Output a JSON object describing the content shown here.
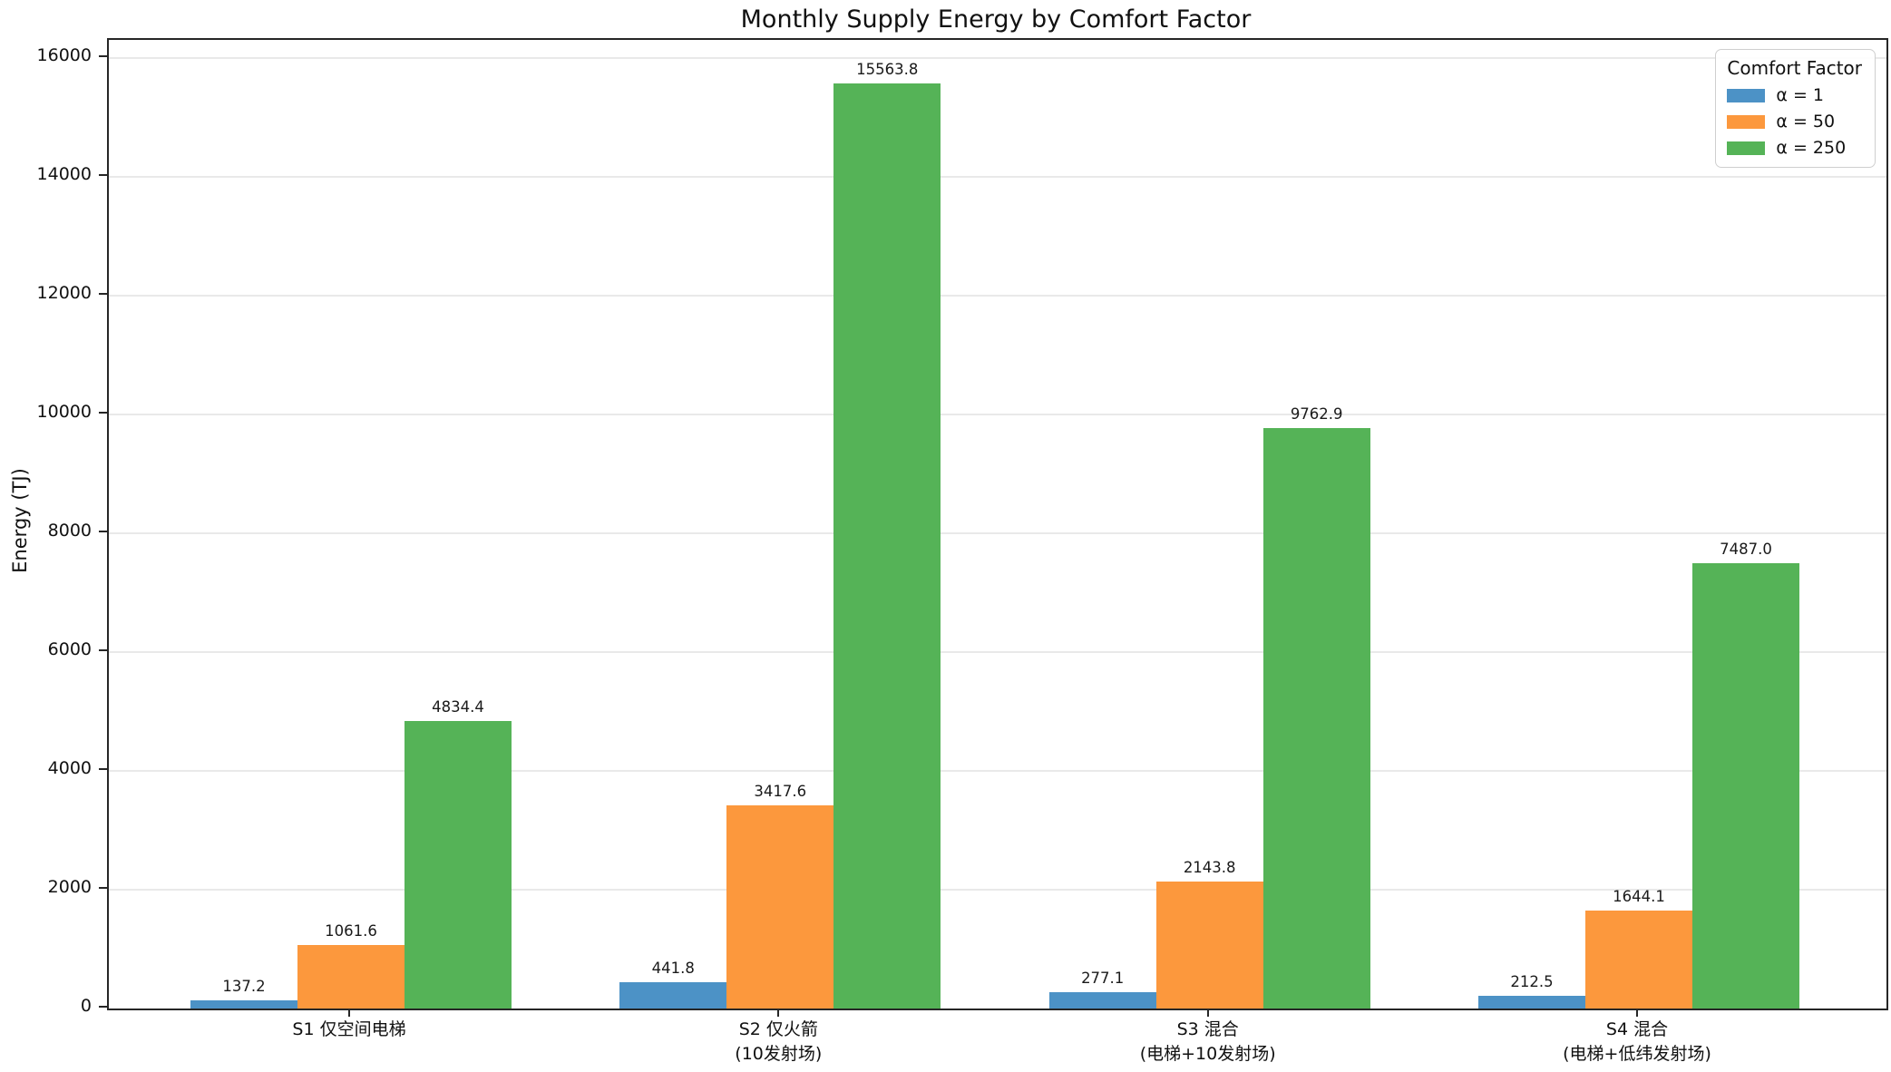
{
  "figure": {
    "title": "Monthly Supply Energy by Comfort Factor",
    "ylabel": "Energy (TJ)"
  },
  "legend": {
    "title": "Comfort Factor",
    "entries": [
      {
        "label": "α = 1",
        "color": "#4c92c6"
      },
      {
        "label": "α = 50",
        "color": "#fc983d"
      },
      {
        "label": "α = 250",
        "color": "#55b357"
      }
    ]
  },
  "chart_data": {
    "type": "bar",
    "title": "Monthly Supply Energy by Comfort Factor",
    "xlabel": "",
    "ylabel": "Energy (TJ)",
    "categories": [
      "S1 仅空间电梯",
      "S2 仅火箭\n(10发射场)",
      "S3 混合\n(电梯+10发射场)",
      "S4 混合\n(电梯+低纬发射场)"
    ],
    "series": [
      {
        "name": "α = 1",
        "color": "#4c92c6",
        "values": [
          137.2,
          441.8,
          277.1,
          212.5
        ]
      },
      {
        "name": "α = 50",
        "color": "#fc983d",
        "values": [
          1061.6,
          3417.6,
          2143.8,
          1644.1
        ]
      },
      {
        "name": "α = 250",
        "color": "#55b357",
        "values": [
          4834.4,
          15563.8,
          9762.9,
          7487.0
        ]
      }
    ],
    "value_labels": [
      [
        "137.2",
        "441.8",
        "277.1",
        "212.5"
      ],
      [
        "1061.6",
        "3417.6",
        "2143.8",
        "1644.1"
      ],
      [
        "4834.4",
        "15563.8",
        "9762.9",
        "7487.0"
      ]
    ],
    "ylim": [
      0,
      16300
    ],
    "yticks": [
      0,
      2000,
      4000,
      6000,
      8000,
      10000,
      12000,
      14000,
      16000
    ],
    "grid": true,
    "grid_axis": "y",
    "legend_title": "Comfort Factor",
    "legend_position": "upper right",
    "bar_labels": true
  }
}
